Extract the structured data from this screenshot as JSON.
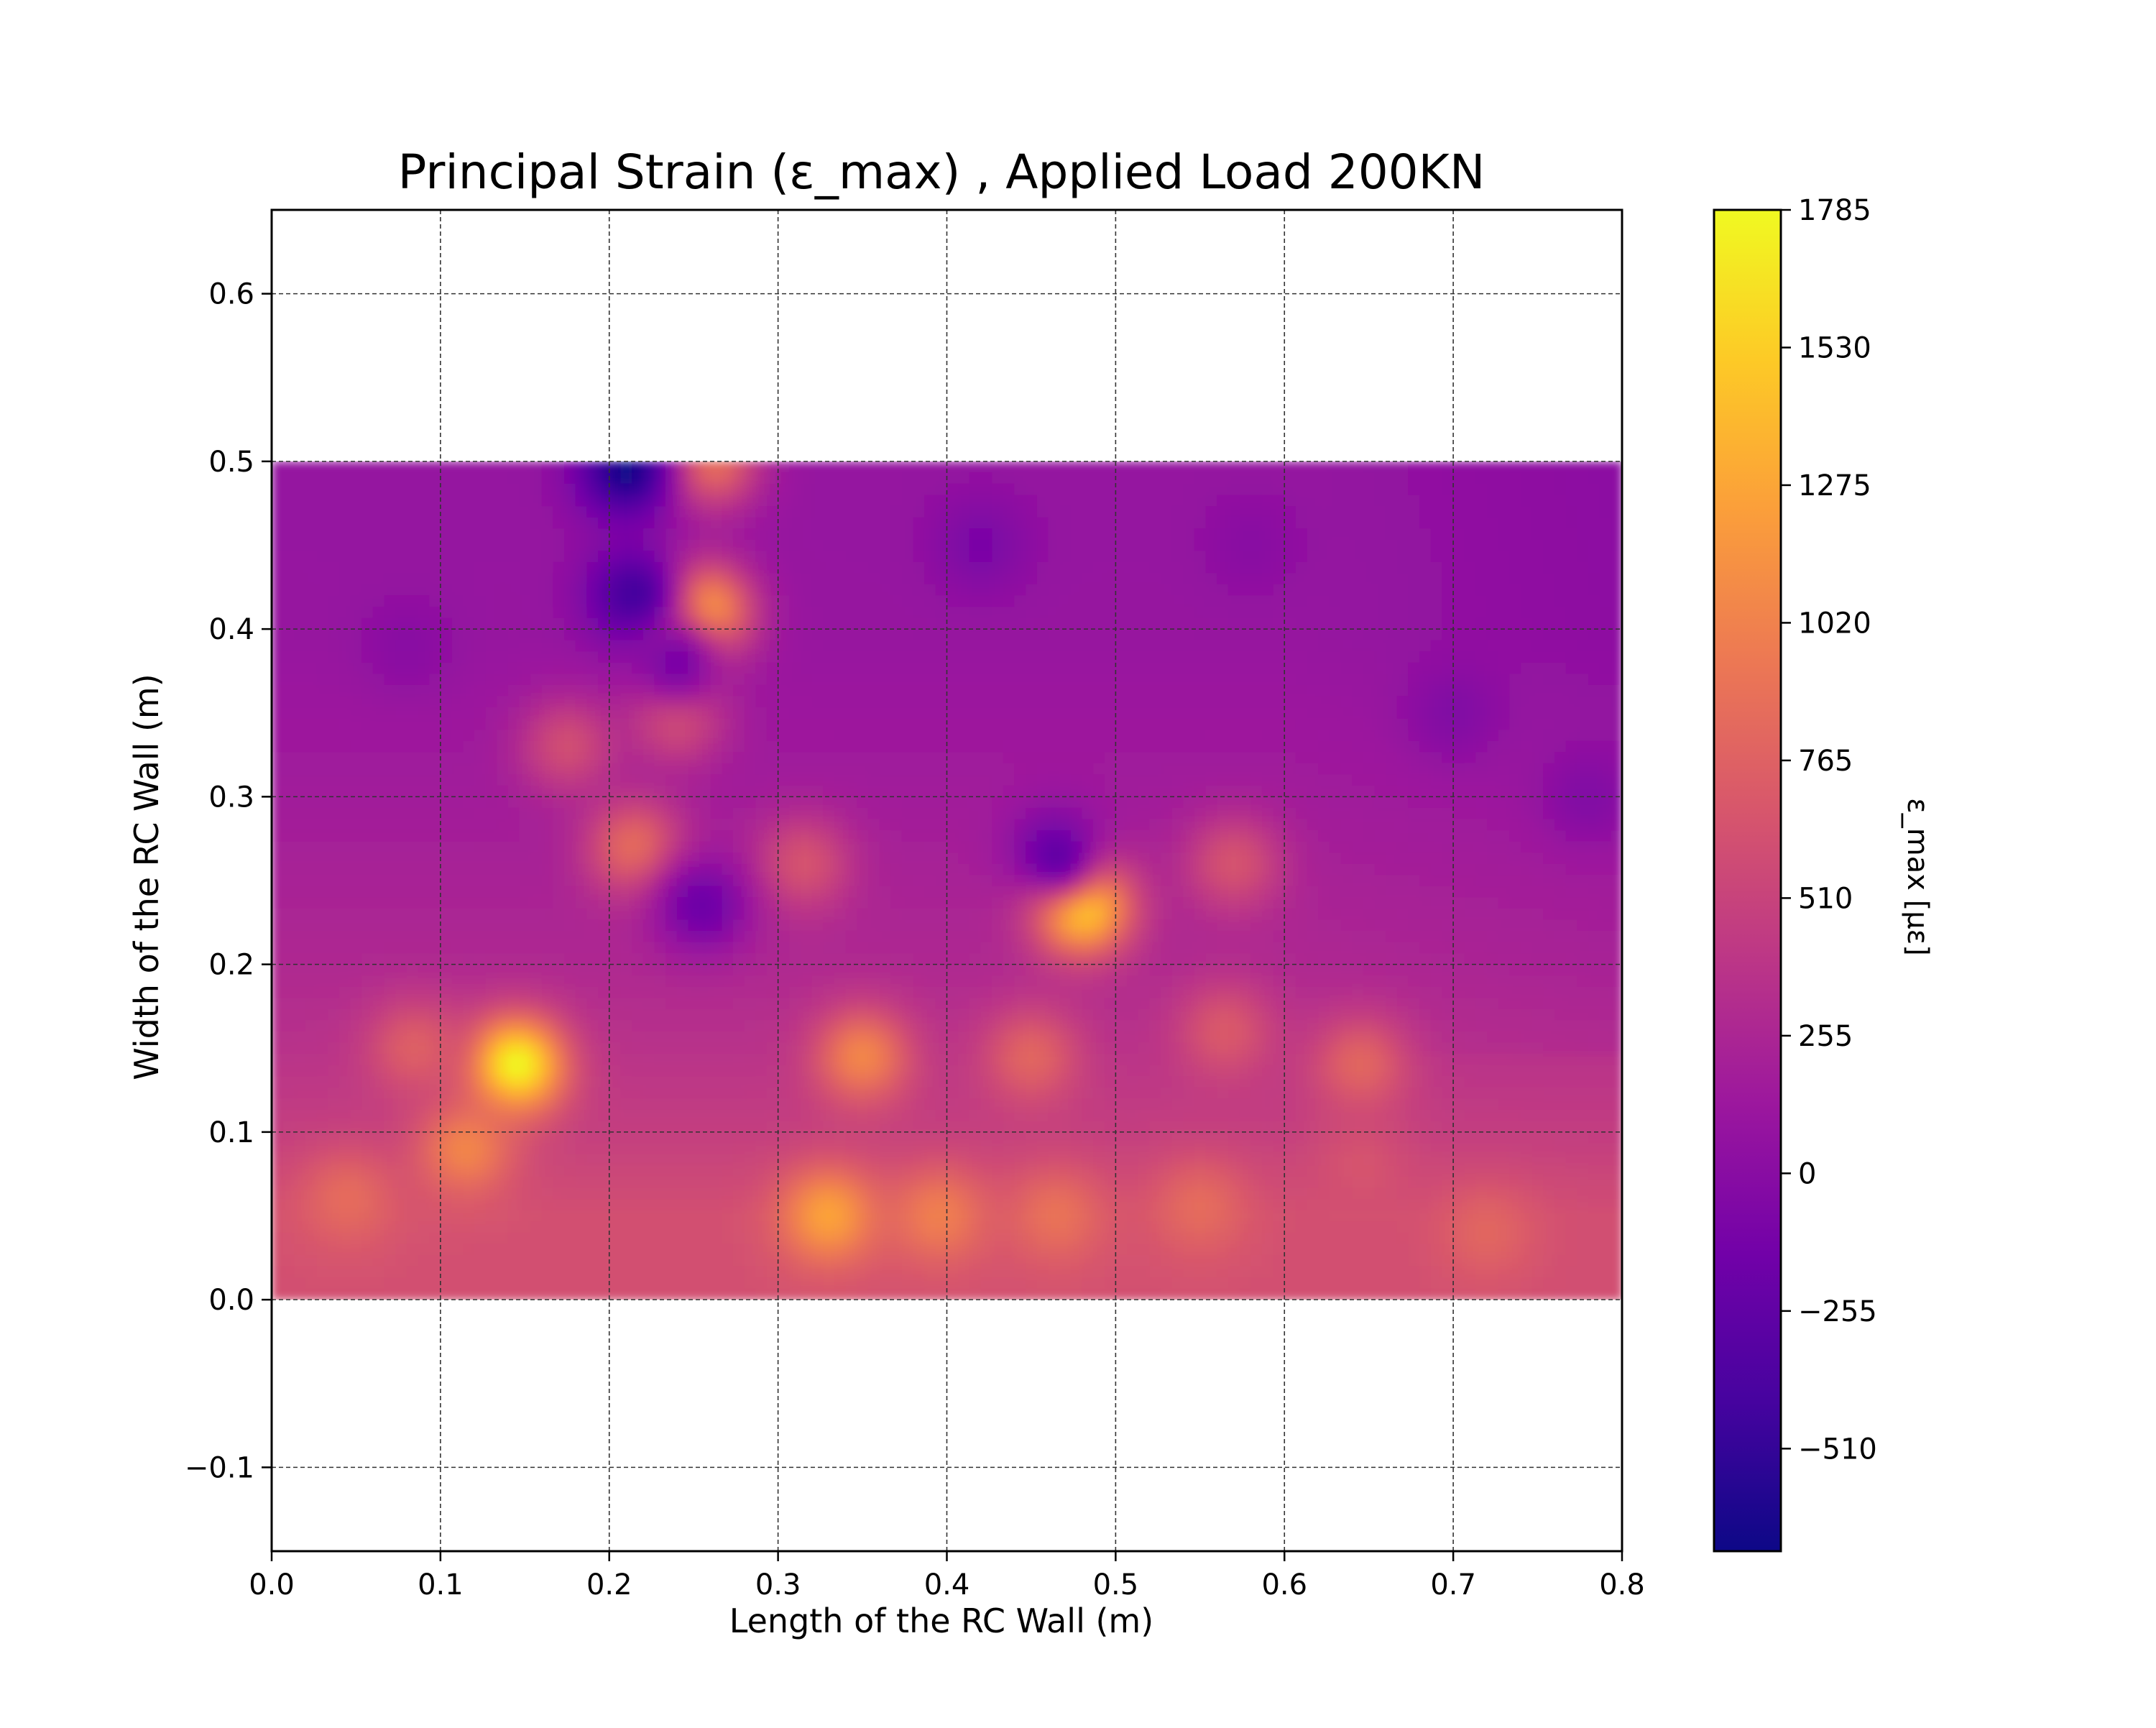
{
  "chart_data": {
    "type": "heatmap",
    "title": "Principal Strain (ε_max) , Applied Load 200KN",
    "xlabel": "Length of the RC Wall (m)",
    "ylabel": "Width of the RC Wall (m)",
    "xlim": [
      0.0,
      0.8
    ],
    "ylim": [
      -0.15,
      0.65
    ],
    "x_ticks": [
      "0.0",
      "0.1",
      "0.2",
      "0.3",
      "0.4",
      "0.5",
      "0.6",
      "0.7",
      "0.8"
    ],
    "y_ticks": [
      "−0.1",
      "0.0",
      "0.1",
      "0.2",
      "0.3",
      "0.4",
      "0.5",
      "0.6"
    ],
    "x_tick_values": [
      0.0,
      0.1,
      0.2,
      0.3,
      0.4,
      0.5,
      0.6,
      0.7,
      0.8
    ],
    "y_tick_values": [
      -0.1,
      0.0,
      0.1,
      0.2,
      0.3,
      0.4,
      0.5,
      0.6
    ],
    "grid": true,
    "data_extent": {
      "x": [
        0.0,
        0.8
      ],
      "y": [
        0.0,
        0.5
      ]
    },
    "colormap": "plasma",
    "colormap_stops": [
      "#0d0887",
      "#46039f",
      "#7201a8",
      "#9c179e",
      "#bd3786",
      "#d8576b",
      "#ed7953",
      "#fb9f3a",
      "#fdca26",
      "#f0f921"
    ],
    "background_value": 200,
    "colorbar": {
      "label": "ε_max [με]",
      "min": -700,
      "max": 1785,
      "ticks": [
        "1785",
        "1530",
        "1275",
        "1020",
        "765",
        "510",
        "255",
        "0",
        "−255",
        "−510"
      ],
      "tick_values": [
        1785,
        1530,
        1275,
        1020,
        765,
        510,
        255,
        0,
        -255,
        -510
      ]
    },
    "hotspots": [
      {
        "x": 0.145,
        "y": 0.14,
        "value": 1780
      },
      {
        "x": 0.48,
        "y": 0.235,
        "value": 1700
      },
      {
        "x": 0.255,
        "y": 0.41,
        "value": 1400
      },
      {
        "x": 0.115,
        "y": 0.09,
        "value": 1050
      },
      {
        "x": 0.33,
        "y": 0.05,
        "value": 1250
      },
      {
        "x": 0.35,
        "y": 0.145,
        "value": 1050
      },
      {
        "x": 0.395,
        "y": 0.05,
        "value": 1000
      },
      {
        "x": 0.465,
        "y": 0.05,
        "value": 900
      },
      {
        "x": 0.045,
        "y": 0.06,
        "value": 850
      },
      {
        "x": 0.55,
        "y": 0.055,
        "value": 850
      },
      {
        "x": 0.72,
        "y": 0.04,
        "value": 800
      },
      {
        "x": 0.645,
        "y": 0.14,
        "value": 800
      },
      {
        "x": 0.215,
        "y": 0.27,
        "value": 850
      },
      {
        "x": 0.45,
        "y": 0.145,
        "value": 800
      },
      {
        "x": 0.565,
        "y": 0.16,
        "value": 700
      },
      {
        "x": 0.57,
        "y": 0.26,
        "value": 650
      },
      {
        "x": 0.085,
        "y": 0.15,
        "value": 750
      },
      {
        "x": 0.315,
        "y": 0.26,
        "value": 650
      },
      {
        "x": 0.175,
        "y": 0.33,
        "value": 600
      },
      {
        "x": 0.645,
        "y": 0.08,
        "value": 650
      },
      {
        "x": 0.24,
        "y": 0.35,
        "value": 700
      },
      {
        "x": 0.26,
        "y": 0.5,
        "value": 900
      },
      {
        "x": 0.215,
        "y": 0.42,
        "value": -450
      },
      {
        "x": 0.21,
        "y": 0.495,
        "value": -650
      },
      {
        "x": 0.255,
        "y": 0.235,
        "value": -180
      },
      {
        "x": 0.465,
        "y": 0.265,
        "value": -250
      },
      {
        "x": 0.42,
        "y": 0.45,
        "value": -100
      },
      {
        "x": 0.7,
        "y": 0.35,
        "value": -50
      },
      {
        "x": 0.78,
        "y": 0.3,
        "value": -50
      },
      {
        "x": 0.08,
        "y": 0.39,
        "value": 0
      },
      {
        "x": 0.58,
        "y": 0.45,
        "value": 0
      },
      {
        "x": 0.24,
        "y": 0.38,
        "value": -100
      }
    ],
    "bands": [
      {
        "y": 0.05,
        "value": 620
      },
      {
        "y": 0.1,
        "value": 470
      },
      {
        "y": 0.15,
        "value": 360
      },
      {
        "y": 0.2,
        "value": 280
      },
      {
        "y": 0.3,
        "value": 170
      },
      {
        "y": 0.4,
        "value": 90
      },
      {
        "y": 0.5,
        "value": 80
      }
    ]
  }
}
